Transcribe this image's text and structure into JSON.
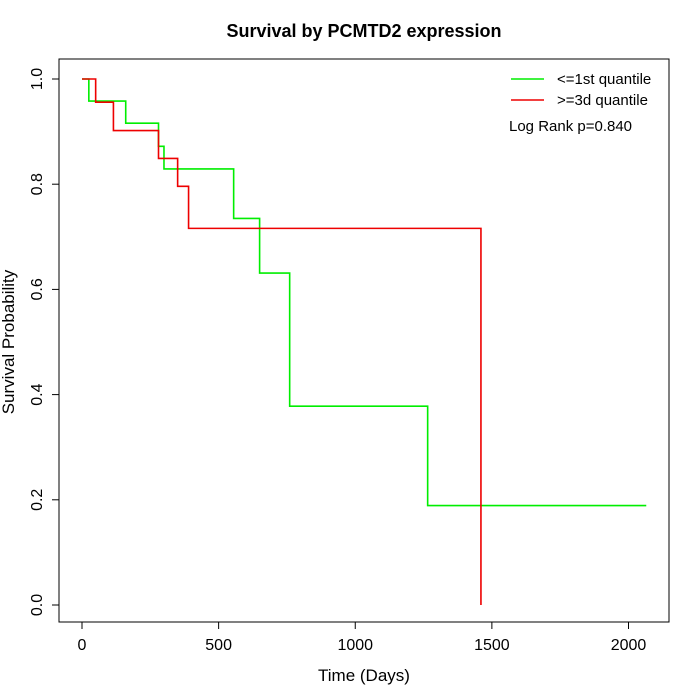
{
  "chart_data": {
    "type": "line",
    "title": "Survival by PCMTD2 expression",
    "xlabel": "Time (Days)",
    "ylabel": "Survival Probability",
    "xlim": [
      0,
      2070
    ],
    "ylim": [
      0,
      1.0
    ],
    "x_ticks": [
      "0",
      "500",
      "1000",
      "1500",
      "2000"
    ],
    "y_ticks": [
      "0.0",
      "0.2",
      "0.4",
      "0.6",
      "0.8",
      "1.0"
    ],
    "annotation": "Log Rank p=0.840",
    "legend_position": "top-right",
    "series": [
      {
        "name": "<=1st quantile",
        "color": "#00ee00",
        "steps": [
          [
            0,
            1.0
          ],
          [
            25,
            0.958
          ],
          [
            160,
            0.916
          ],
          [
            280,
            0.872
          ],
          [
            300,
            0.829
          ],
          [
            555,
            0.735
          ],
          [
            650,
            0.631
          ],
          [
            760,
            0.378
          ],
          [
            1265,
            0.189
          ],
          [
            2065,
            0.189
          ]
        ]
      },
      {
        "name": ">=3d quantile",
        "color": "#ee0000",
        "steps": [
          [
            0,
            1.0
          ],
          [
            50,
            0.956
          ],
          [
            115,
            0.902
          ],
          [
            280,
            0.849
          ],
          [
            350,
            0.796
          ],
          [
            390,
            0.716
          ],
          [
            1460,
            0.0
          ]
        ]
      }
    ]
  }
}
